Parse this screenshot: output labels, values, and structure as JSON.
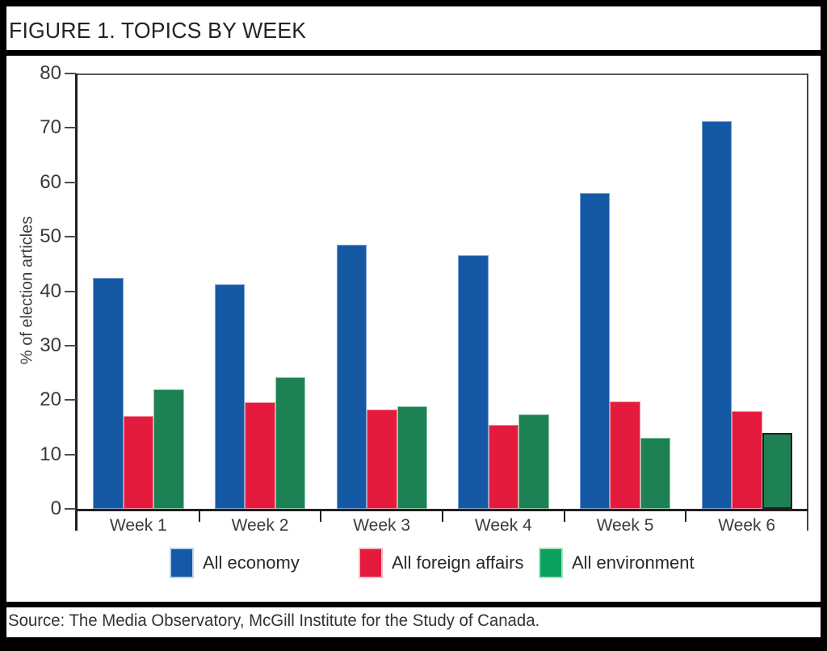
{
  "title": "FIGURE 1. TOPICS BY WEEK",
  "source": "Source: The Media Observatory, McGill Institute for the Study of Canada.",
  "chart_data": {
    "type": "bar",
    "title": "FIGURE 1. TOPICS BY WEEK",
    "categories": [
      "Week 1",
      "Week 2",
      "Week 3",
      "Week 4",
      "Week 5",
      "Week 6"
    ],
    "series": [
      {
        "name": "All economy",
        "color": "#1559a5",
        "edge": "#7aa3d4",
        "values": [
          42.5,
          41.3,
          48.6,
          46.6,
          58.1,
          71.2
        ]
      },
      {
        "name": "All foreign affairs",
        "color": "#e41b3d",
        "edge": "#f096a8",
        "values": [
          17.1,
          19.6,
          18.3,
          15.4,
          19.7,
          17.9
        ]
      },
      {
        "name": "All environment",
        "color": "#1e8153",
        "edge": "#8fccaa",
        "values": [
          21.9,
          24.2,
          18.8,
          17.3,
          13.0,
          14.0
        ]
      }
    ],
    "xlabel": "",
    "ylabel": "% of election articles",
    "ylim": [
      0,
      80
    ],
    "ytick_step": 10,
    "grid": false,
    "legend_position": "bottom",
    "outlined_bar": {
      "category_index": 5,
      "series_index": 2,
      "outline_color": "#231f20"
    }
  },
  "legend": {
    "items": [
      {
        "label": "All economy",
        "color": "#155aa6",
        "border": "#bad3ed"
      },
      {
        "label": "All foreign affairs",
        "color": "#e41b3d",
        "border": "#f6bac6"
      },
      {
        "label": "All environment",
        "color": "#0aa25e",
        "border": "#aee0c6"
      }
    ]
  }
}
